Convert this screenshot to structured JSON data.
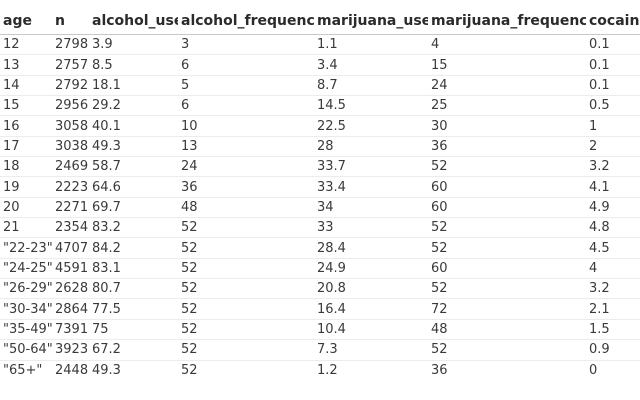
{
  "table": {
    "columns": [
      "age",
      "n",
      "alcohol_use",
      "alcohol_frequency",
      "marijuana_use",
      "marijuana_frequency",
      "cocaine"
    ],
    "rows": [
      [
        "12",
        "2798",
        "3.9",
        "3",
        "1.1",
        "4",
        "0.1"
      ],
      [
        "13",
        "2757",
        "8.5",
        "6",
        "3.4",
        "15",
        "0.1"
      ],
      [
        "14",
        "2792",
        "18.1",
        "5",
        "8.7",
        "24",
        "0.1"
      ],
      [
        "15",
        "2956",
        "29.2",
        "6",
        "14.5",
        "25",
        "0.5"
      ],
      [
        "16",
        "3058",
        "40.1",
        "10",
        "22.5",
        "30",
        "1"
      ],
      [
        "17",
        "3038",
        "49.3",
        "13",
        "28",
        "36",
        "2"
      ],
      [
        "18",
        "2469",
        "58.7",
        "24",
        "33.7",
        "52",
        "3.2"
      ],
      [
        "19",
        "2223",
        "64.6",
        "36",
        "33.4",
        "60",
        "4.1"
      ],
      [
        "20",
        "2271",
        "69.7",
        "48",
        "34",
        "60",
        "4.9"
      ],
      [
        "21",
        "2354",
        "83.2",
        "52",
        "33",
        "52",
        "4.8"
      ],
      [
        "\"22-23\"",
        "4707",
        "84.2",
        "52",
        "28.4",
        "52",
        "4.5"
      ],
      [
        "\"24-25\"",
        "4591",
        "83.1",
        "52",
        "24.9",
        "60",
        "4"
      ],
      [
        "\"26-29\"",
        "2628",
        "80.7",
        "52",
        "20.8",
        "52",
        "3.2"
      ],
      [
        "\"30-34\"",
        "2864",
        "77.5",
        "52",
        "16.4",
        "72",
        "2.1"
      ],
      [
        "\"35-49\"",
        "7391",
        "75",
        "52",
        "10.4",
        "48",
        "1.5"
      ],
      [
        "\"50-64\"",
        "3923",
        "67.2",
        "52",
        "7.3",
        "52",
        "0.9"
      ],
      [
        "\"65+\"",
        "2448",
        "49.3",
        "52",
        "1.2",
        "36",
        "0"
      ]
    ]
  }
}
